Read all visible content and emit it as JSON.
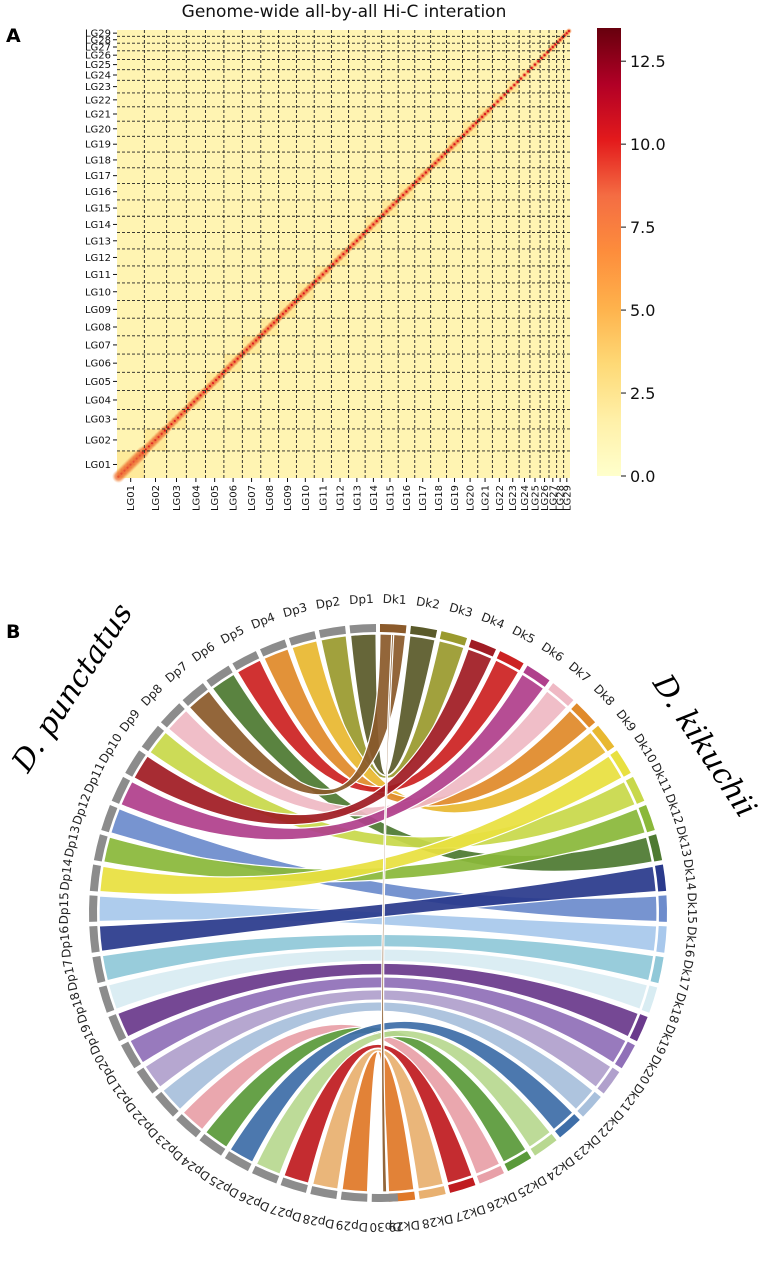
{
  "panel_a_letter": "A",
  "panel_b_letter": "B",
  "chart_data": [
    {
      "type": "heatmap",
      "title": "Genome-wide all-by-all Hi-C interation",
      "categories": [
        "LG01",
        "LG02",
        "LG03",
        "LG04",
        "LG05",
        "LG06",
        "LG07",
        "LG08",
        "LG09",
        "LG10",
        "LG11",
        "LG12",
        "LG13",
        "LG14",
        "LG15",
        "LG16",
        "LG17",
        "LG18",
        "LG19",
        "LG20",
        "LG21",
        "LG22",
        "LG23",
        "LG24",
        "LG25",
        "LG26",
        "LG27",
        "LG28",
        "LG29"
      ],
      "chromosome_relative_sizes": [
        43,
        35,
        31,
        30,
        29,
        29,
        29,
        28,
        28,
        28,
        27,
        27,
        26,
        26,
        26,
        26,
        25,
        25,
        25,
        24,
        23,
        22,
        20,
        17,
        16,
        14,
        12,
        11,
        10
      ],
      "diagonal_value": 10.5,
      "off_diagonal_value": 1.2,
      "colorbar": {
        "min": 0.0,
        "max": 13.5,
        "ticks": [
          "0.0",
          "2.5",
          "5.0",
          "7.5",
          "10.0",
          "12.5"
        ],
        "tick_values": [
          0,
          2.5,
          5,
          7.5,
          10,
          12.5
        ]
      },
      "colormap": [
        "#ffffcc",
        "#fff0a8",
        "#fed976",
        "#feb24c",
        "#fd8d3c",
        "#f46d43",
        "#e31a1c",
        "#b10026",
        "#67000d"
      ]
    },
    {
      "type": "circos",
      "species_left": "D. punctatus",
      "species_right": "D. kikuchii",
      "left_segments": [
        "Dp1",
        "Dp2",
        "Dp3",
        "Dp4",
        "Dp5",
        "Dp6",
        "Dp7",
        "Dp8",
        "Dp9",
        "Dp10",
        "Dp11",
        "Dp12",
        "Dp13",
        "Dp14",
        "Dp15",
        "Dp16",
        "Dp17",
        "Dp18",
        "Dp19",
        "Dp20",
        "Dp21",
        "Dp22",
        "Dp23",
        "Dp24",
        "Dp25",
        "Dp26",
        "Dp27",
        "Dp28",
        "Dp29",
        "Dp30"
      ],
      "right_segments": [
        "Dk1",
        "Dk2",
        "Dk3",
        "Dk4",
        "Dk5",
        "Dk6",
        "Dk7",
        "Dk8",
        "Dk9",
        "Dk10",
        "Dk11",
        "Dk12",
        "Dk13",
        "Dk14",
        "Dk15",
        "Dk16",
        "Dk17",
        "Dk18",
        "Dk19",
        "Dk20",
        "Dk21",
        "Dk22",
        "Dk23",
        "Dk24",
        "Dk25",
        "Dk26",
        "Dk27",
        "Dk28",
        "Dk29"
      ],
      "left_color": "#8c8c8c",
      "right_colors": [
        "#8b5a2b",
        "#5a5a2a",
        "#9a9a2e",
        "#a01c24",
        "#cc2222",
        "#b0408c",
        "#efb9c4",
        "#e08a2a",
        "#e8b830",
        "#e8e040",
        "#c8d84a",
        "#8ab83a",
        "#4e7a32",
        "#2a3a8c",
        "#6d8ccc",
        "#a8c8ec",
        "#90c8d8",
        "#d8ecf2",
        "#6a3a8c",
        "#9070b8",
        "#b0a0cc",
        "#a8c0dc",
        "#3e6ea8",
        "#b8d890",
        "#5a9a3a",
        "#e8a0a8",
        "#c01c20",
        "#e8b070",
        "#e07828"
      ],
      "links": [
        {
          "dp": "Dp1",
          "dk": "Dk2"
        },
        {
          "dp": "Dp2",
          "dk": "Dk3"
        },
        {
          "dp": "Dp3",
          "dk": "Dk9"
        },
        {
          "dp": "Dp4",
          "dk": "Dk8"
        },
        {
          "dp": "Dp5",
          "dk": "Dk5"
        },
        {
          "dp": "Dp6",
          "dk": "Dk13"
        },
        {
          "dp": "Dp7",
          "dk": "Dk1"
        },
        {
          "dp": "Dp8",
          "dk": "Dk7"
        },
        {
          "dp": "Dp9",
          "dk": "Dk11"
        },
        {
          "dp": "Dp10",
          "dk": "Dk4"
        },
        {
          "dp": "Dp11",
          "dk": "Dk6"
        },
        {
          "dp": "Dp12",
          "dk": "Dk15"
        },
        {
          "dp": "Dp13",
          "dk": "Dk12"
        },
        {
          "dp": "Dp14",
          "dk": "Dk10"
        },
        {
          "dp": "Dp15",
          "dk": "Dk16"
        },
        {
          "dp": "Dp16",
          "dk": "Dk14"
        },
        {
          "dp": "Dp17",
          "dk": "Dk17"
        },
        {
          "dp": "Dp18",
          "dk": "Dk18"
        },
        {
          "dp": "Dp19",
          "dk": "Dk19"
        },
        {
          "dp": "Dp20",
          "dk": "Dk20"
        },
        {
          "dp": "Dp21",
          "dk": "Dk21"
        },
        {
          "dp": "Dp22",
          "dk": "Dk22"
        },
        {
          "dp": "Dp23",
          "dk": "Dk26"
        },
        {
          "dp": "Dp24",
          "dk": "Dk25"
        },
        {
          "dp": "Dp25",
          "dk": "Dk23"
        },
        {
          "dp": "Dp26",
          "dk": "Dk24"
        },
        {
          "dp": "Dp27",
          "dk": "Dk27"
        },
        {
          "dp": "Dp28",
          "dk": "Dk28"
        },
        {
          "dp": "Dp29",
          "dk": "Dk29"
        },
        {
          "dp": "Dp30",
          "dk": "Dk1"
        }
      ]
    }
  ]
}
